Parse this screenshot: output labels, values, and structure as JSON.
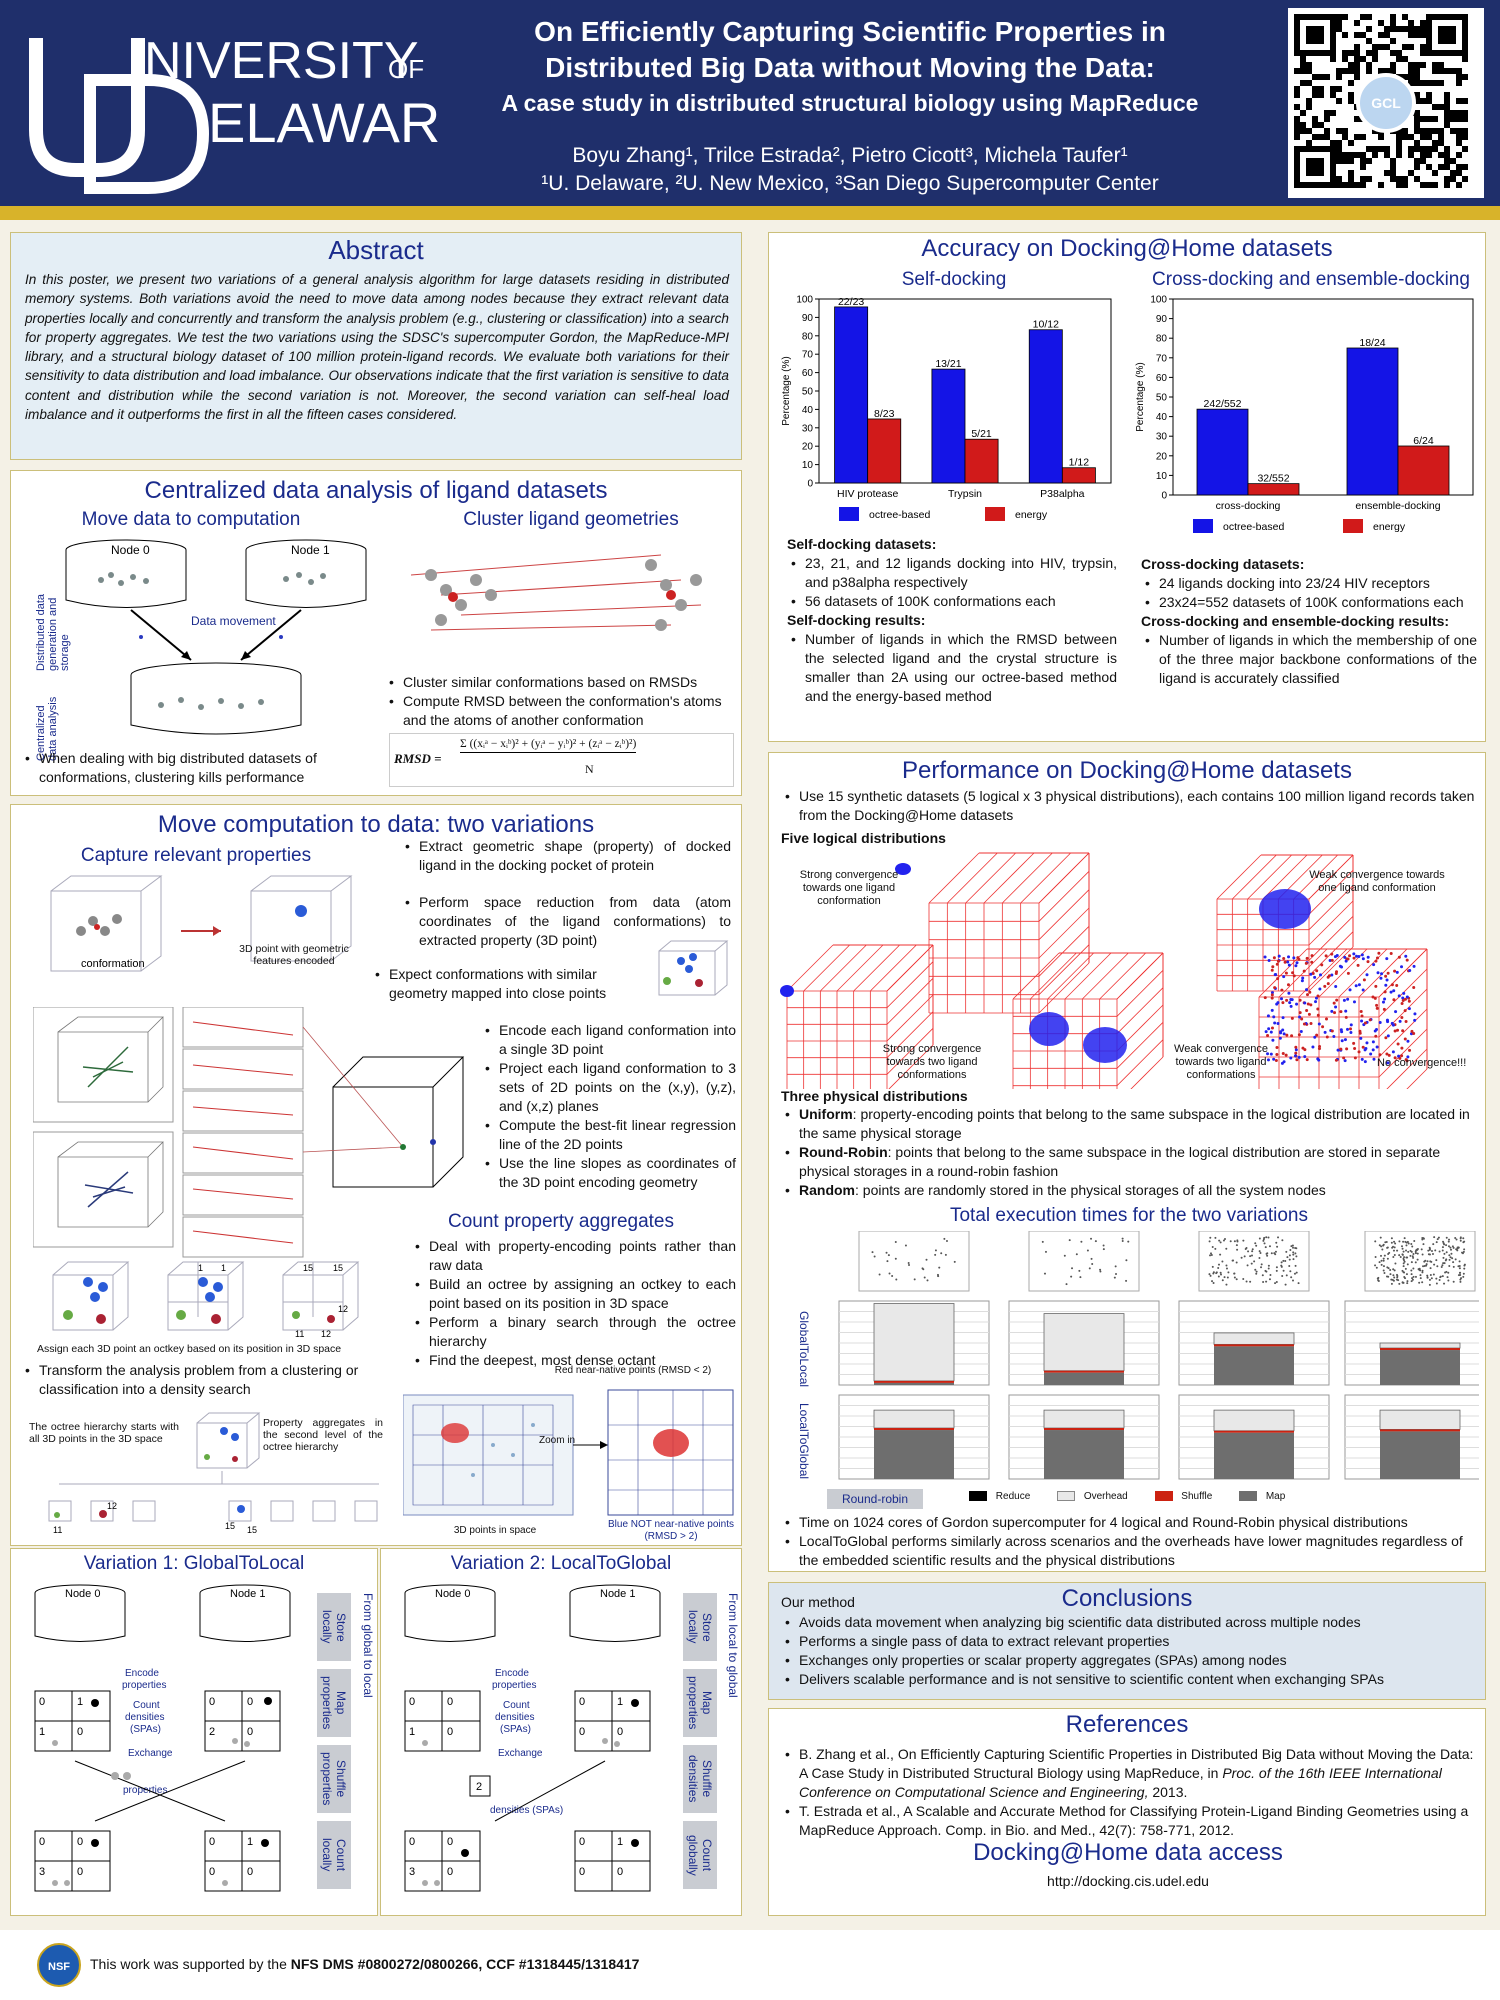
{
  "header": {
    "logo": "UNIVERSITY OF DELAWARE",
    "title_line1": "On Efficiently Capturing Scientific Properties in",
    "title_line2": "Distributed Big Data without Moving the Data:",
    "title_line3": "A case study in distributed structural biology using MapReduce",
    "authors": "Boyu Zhang¹, Trilce Estrada², Pietro Cicott³, Michela Taufer¹",
    "affiliations": "¹U. Delaware, ²U. New Mexico, ³San Diego Supercomputer Center",
    "qr_label": "GCL"
  },
  "abstract": {
    "title": "Abstract",
    "text": "In this poster, we present two variations of a general analysis algorithm for large datasets residing in distributed memory systems. Both variations avoid the need to move data among nodes because they extract relevant data properties locally and concurrently and transform the analysis problem (e.g., clustering or classification) into a search for property aggregates. We test the two variations using the SDSC's supercomputer Gordon, the MapReduce-MPI library, and a structural biology dataset of 100 million protein-ligand records. We evaluate both variations for their sensitivity to data distribution and load imbalance. Our observations indicate that the first variation is sensitive to data content and distribution while the second variation is not. Moreover, the second variation can self-heal load imbalance and it outperforms the first in all the fifteen cases considered."
  },
  "centralized": {
    "title": "Centralized data analysis of ligand datasets",
    "sub_left": "Move data to computation",
    "sub_right": "Cluster ligand geometries",
    "node0": "Node 0",
    "node1": "Node 1",
    "data_movement": "Data movement",
    "side_top": "Distributed data generation and storage",
    "side_bottom": "Centralized data analysis",
    "bullet_left": "When dealing with big distributed datasets of conformations, clustering kills performance",
    "bullets_right": [
      "Cluster similar conformations based on RMSDs",
      "Compute RMSD between the conformation's atoms and the atoms of another conformation"
    ],
    "rmsd_label": "RMSD =",
    "rmsd_num": "Σ ((xᵢᵃ − xᵢᵇ)² + (yᵢᵃ − yᵢᵇ)² + (zᵢᵃ − zᵢᵇ)²)",
    "rmsd_den": "N"
  },
  "move_comp": {
    "title": "Move computation to data: two variations",
    "sub_capture": "Capture relevant properties",
    "conformation_label": "conformation",
    "point_label": "3D point with geometric features encoded",
    "bullets_a": [
      "Extract geometric shape (property) of docked ligand in the docking pocket of protein",
      "Perform space reduction from data (atom coordinates of the ligand conformations) to extracted property (3D point)",
      "Expect conformations with similar geometry mapped into close points"
    ],
    "bullets_b": [
      "Encode each ligand conformation into a single 3D point",
      "Project each ligand conformation to 3 sets of 2D points on the (x,y), (y,z), and (x,z) planes",
      "Compute the best-fit linear regression line of the 2D points",
      "Use the line slopes as coordinates of the 3D point encoding geometry"
    ],
    "sub_count": "Count property aggregates",
    "bullets_c": [
      "Deal with property-encoding points rather than raw data",
      "Build an octree by assigning an octkey to each point based on its position in 3D space",
      "Perform a binary search through the octree hierarchy",
      "Find the deepest, most dense octant"
    ],
    "octkey_caption": "Assign each 3D point an octkey based on its position in 3D space",
    "bullet_transform": "Transform the analysis problem from a clustering or classification into a density search",
    "octree_note1": "The octree hierarchy starts with all 3D points in the 3D space",
    "octree_note2": "Property aggregates in the second level of the octree hierarchy",
    "red_label": "Red near-native points (RMSD < 2)",
    "blue_label": "Blue NOT near-native points (RMSD > 2)",
    "zoom_label": "Zoom in",
    "points_label": "3D points in space",
    "oct_nums": [
      "1",
      "1",
      "15",
      "15",
      "12",
      "11",
      "12",
      "15",
      "15"
    ]
  },
  "variation1": {
    "title": "Variation 1: GlobalToLocal",
    "side": "From global to local",
    "steps": [
      "Store locally",
      "Map properties",
      "Shuffle properties",
      "Count locally"
    ],
    "encode": "Encode properties ----- Count densities (SPAs) ----- Exchange",
    "exchange_bottom": "properties"
  },
  "variation2": {
    "title": "Variation 2: LocalToGlobal",
    "side": "From local to global",
    "steps": [
      "Store locally",
      "Map properties",
      "Shuffle densities",
      "Count globally"
    ],
    "encode": "Encode properties ----- Count densities (SPAs) ----- Exchange",
    "exchange_bottom": "densities (SPAs)"
  },
  "accuracy": {
    "title": "Accuracy on Docking@Home datasets",
    "sub_left": "Self-docking",
    "sub_right": "Cross-docking and ensemble-docking",
    "left_h1": "Self-docking datasets:",
    "left_b1": [
      "23, 21, and 12 ligands docking into HIV, trypsin, and p38alpha respectively",
      "56 datasets of 100K conformations each"
    ],
    "left_h2": "Self-docking results:",
    "left_b2": [
      "Number of ligands in which the RMSD between the selected ligand and the crystal structure is smaller than 2A using our octree-based method and the energy-based method"
    ],
    "right_h1": "Cross-docking datasets:",
    "right_b1": [
      "24 ligands docking into 23/24 HIV receptors",
      "23x24=552 datasets of 100K conformations each"
    ],
    "right_h2": "Cross-docking and ensemble-docking results:",
    "right_b2": [
      "Number of ligands in which the membership of one of the three major backbone conformations of the ligand is accurately classified"
    ]
  },
  "chart_data": [
    {
      "type": "bar",
      "title": "Self-docking",
      "ylabel": "Percentage (%)",
      "ylim": [
        0,
        100
      ],
      "yticks": [
        "0",
        "10",
        "20",
        "30",
        "40",
        "50",
        "60",
        "70",
        "80",
        "90",
        "100"
      ],
      "categories": [
        "HIV protease",
        "Trypsin",
        "P38alpha"
      ],
      "series": [
        {
          "name": "octree-based",
          "color": "#1414e6",
          "values": [
            95.7,
            61.9,
            83.3
          ],
          "labels": [
            "22/23",
            "13/21",
            "10/12"
          ]
        },
        {
          "name": "energy",
          "color": "#d11a1a",
          "values": [
            34.8,
            23.8,
            8.3
          ],
          "labels": [
            "8/23",
            "5/21",
            "1/12"
          ]
        }
      ],
      "legend": "bottom"
    },
    {
      "type": "bar",
      "title": "Cross-docking and ensemble-docking",
      "ylabel": "Percentage (%)",
      "ylim": [
        0,
        100
      ],
      "yticks": [
        "0",
        "10",
        "20",
        "30",
        "40",
        "50",
        "60",
        "70",
        "80",
        "90",
        "100"
      ],
      "categories": [
        "cross-docking",
        "ensemble-docking"
      ],
      "series": [
        {
          "name": "octree-based",
          "color": "#1414e6",
          "values": [
            43.8,
            75.0
          ],
          "labels": [
            "242/552",
            "18/24"
          ]
        },
        {
          "name": "energy",
          "color": "#d11a1a",
          "values": [
            5.8,
            25.0
          ],
          "labels": [
            "32/552",
            "6/24"
          ]
        }
      ],
      "legend": "bottom"
    }
  ],
  "performance": {
    "title": "Performance on Docking@Home datasets",
    "intro": "Use 15 synthetic datasets (5 logical x 3 physical distributions), each contains 100 million ligand records taken from the Docking@Home datasets",
    "logical_h": "Five logical distributions",
    "labels": [
      "Strong convergence towards one ligand conformation",
      "Weak convergence towards one ligand conformation",
      "Strong convergence towards two ligand conformations",
      "Weak convergence towards two ligand conformations",
      "No convergence!!!"
    ],
    "physical_h": "Three physical distributions",
    "physical": [
      {
        "name": "Uniform",
        "desc": ": property-encoding points that belong to the same subspace in the logical distribution are located in the same physical storage"
      },
      {
        "name": "Round-Robin",
        "desc": ": points that belong to the same subspace in the logical distribution are stored in separate physical storages in a round-robin fashion"
      },
      {
        "name": "Random",
        "desc": ": points are randomly stored in the physical storages of all the system nodes"
      }
    ],
    "times_title": "Total execution times for the two variations",
    "row1": "GlobalToLocal",
    "row2": "LocalToGlobal",
    "round_robin": "Round-robin",
    "legend": [
      "Reduce",
      "Overhead",
      "Shuffle",
      "Map"
    ],
    "bullets": [
      "Time on 1024 cores of Gordon supercomputer for 4 logical and Round-Robin physical distributions",
      "LocalToGlobal performs similarly across scenarios and the overheads have lower magnitudes regardless of the embedded scientific results and the physical distributions"
    ]
  },
  "conclusions": {
    "label": "Our method",
    "title": "Conclusions",
    "bullets": [
      "Avoids data movement when analyzing big scientific data distributed across multiple nodes",
      "Performs a single pass of data to extract relevant properties",
      "Exchanges only properties or scalar property aggregates (SPAs) among nodes",
      "Delivers scalable performance and is not sensitive to scientific content  when exchanging SPAs"
    ]
  },
  "references": {
    "title": "References",
    "r1a": "B. Zhang et al., On Efficiently Capturing Scientific Properties in Distributed Big Data without Moving the Data: A Case Study in Distributed Structural Biology using MapReduce, in ",
    "r1b": "Proc. of the 16th IEEE International Conference on Computational Science and Engineering,",
    "r1c": " 2013.",
    "r2": "T. Estrada et al., A Scalable and Accurate Method for Classifying Protein-Ligand Binding Geometries using a MapReduce Approach. Comp. in Bio. and Med., 42(7): 758-771, 2012.",
    "access_title": "Docking@Home data access",
    "url": "http://docking.cis.udel.edu"
  },
  "footer": {
    "prefix": "This work was supported by the ",
    "grants": "NFS DMS #0800272/0800266, CCF #1318445/1318417",
    "logo": "NSF"
  }
}
